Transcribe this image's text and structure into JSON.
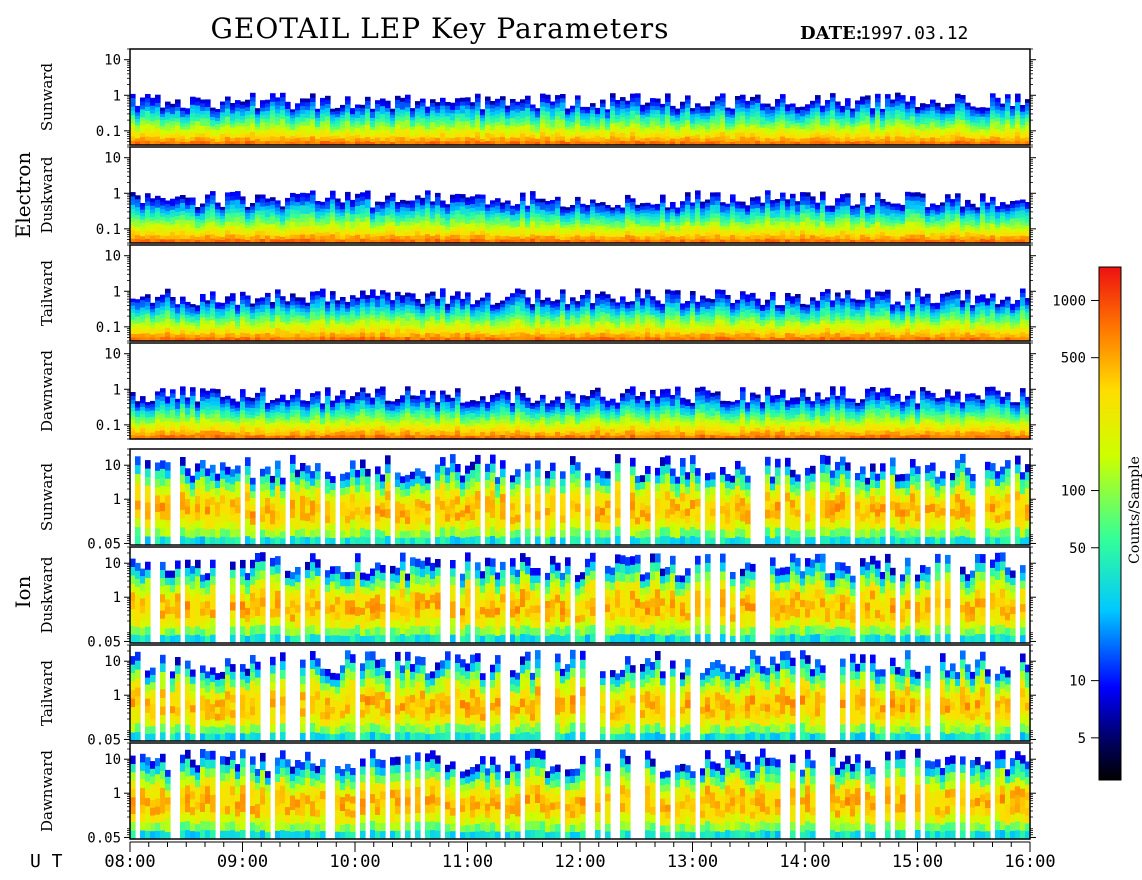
{
  "chart_data": {
    "type": "heatmap",
    "title": "GEOTAIL LEP Key Parameters",
    "date_label": "DATE:",
    "date_value": "1997.03.12",
    "time_axis": {
      "label": "U T",
      "ticks": [
        "08:00",
        "09:00",
        "10:00",
        "11:00",
        "12:00",
        "13:00",
        "14:00",
        "15:00",
        "16:00"
      ],
      "range_hours": [
        8,
        16
      ]
    },
    "groups": [
      {
        "name": "Electron",
        "yscale": "log",
        "ylim": [
          0.04,
          20
        ],
        "yticks": [
          {
            "value": 10,
            "label": "10"
          },
          {
            "value": 1,
            "label": "1"
          },
          {
            "value": 0.1,
            "label": "0.1"
          }
        ],
        "panels": [
          {
            "label": "Sunward"
          },
          {
            "label": "Duskward"
          },
          {
            "label": "Tailward"
          },
          {
            "label": "Dawnward"
          }
        ]
      },
      {
        "name": "Ion",
        "yscale": "log",
        "ylim": [
          0.045,
          30
        ],
        "yticks": [
          {
            "value": 10,
            "label": "10"
          },
          {
            "value": 1,
            "label": "1"
          },
          {
            "value": 0.05,
            "label": "0.05"
          }
        ],
        "panels": [
          {
            "label": "Sunward"
          },
          {
            "label": "Duskward"
          },
          {
            "label": "Tailward"
          },
          {
            "label": "Dawnward"
          }
        ]
      }
    ],
    "colorbar": {
      "label": "Counts/Sample",
      "scale": "log",
      "range": [
        3,
        1500
      ],
      "ticks": [
        {
          "value": 1000,
          "label": "1000"
        },
        {
          "value": 500,
          "label": "500"
        },
        {
          "value": 100,
          "label": "100"
        },
        {
          "value": 50,
          "label": "50"
        },
        {
          "value": 10,
          "label": "10"
        },
        {
          "value": 5,
          "label": "5"
        }
      ]
    }
  }
}
